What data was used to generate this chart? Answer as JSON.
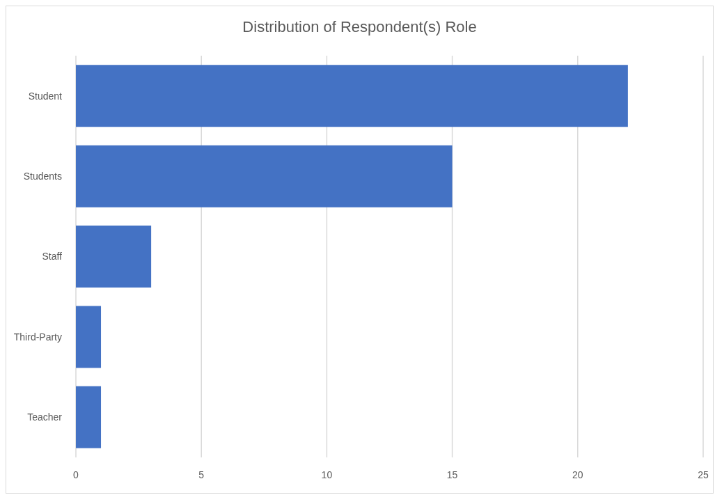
{
  "chart_data": {
    "type": "bar",
    "title": "Distribution of Respondent(s) Role",
    "orientation": "horizontal",
    "categories": [
      "Student",
      "Students",
      "Staff",
      "Third-Party",
      "Teacher"
    ],
    "values": [
      22,
      15,
      3,
      1,
      1
    ],
    "color": "#4472c4",
    "xlim": [
      0,
      25
    ],
    "xticks": [
      0,
      5,
      10,
      15,
      20,
      25
    ],
    "grid": "x"
  }
}
